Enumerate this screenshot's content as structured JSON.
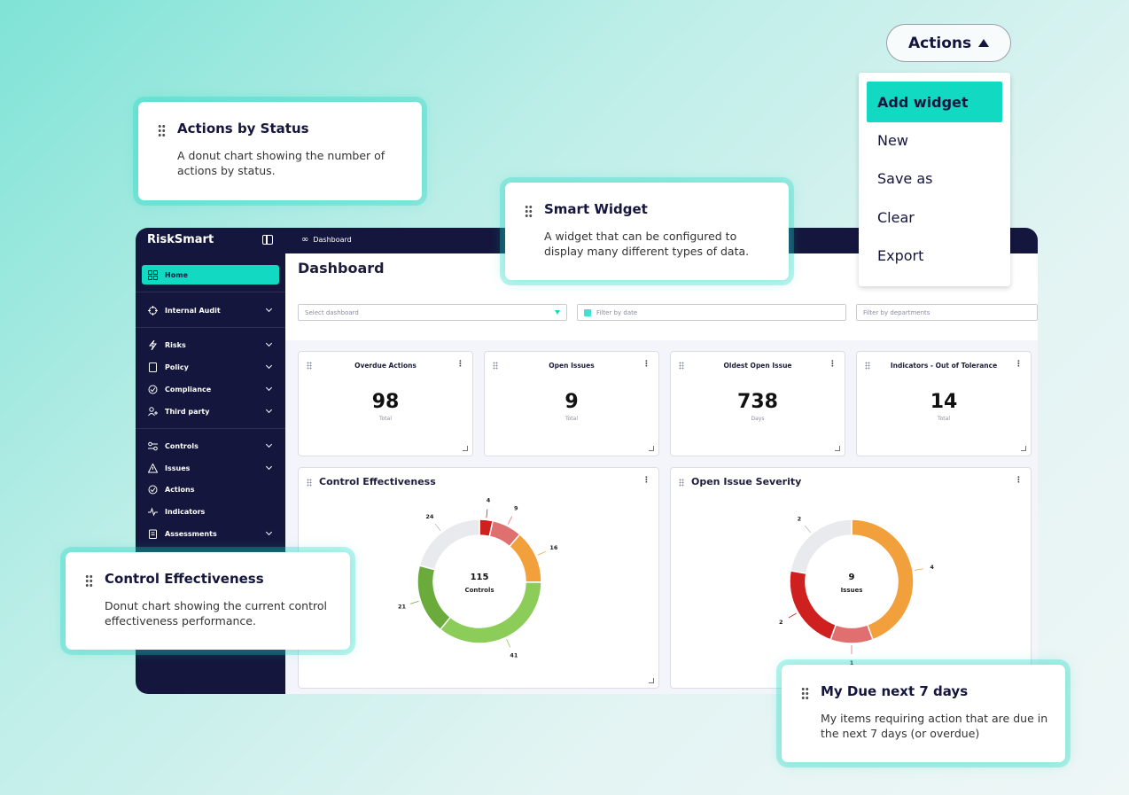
{
  "sidebar": {
    "brand": "RiskSmart",
    "items": [
      {
        "label": "Home"
      },
      {
        "label": "Internal Audit"
      },
      {
        "label": "Risks"
      },
      {
        "label": "Policy"
      },
      {
        "label": "Compliance"
      },
      {
        "label": "Third party"
      },
      {
        "label": "Controls"
      },
      {
        "label": "Issues"
      },
      {
        "label": "Actions"
      },
      {
        "label": "Indicators"
      },
      {
        "label": "Assessments"
      }
    ]
  },
  "topbar": {
    "breadcrumb": "Dashboard"
  },
  "main": {
    "title": "Dashboard",
    "filters": {
      "dashboard": "Select dashboard",
      "date": "Filter by date",
      "departments": "Filter by departments"
    },
    "kpis": [
      {
        "title": "Overdue Actions",
        "value": "98",
        "sub": "Total"
      },
      {
        "title": "Open Issues",
        "value": "9",
        "sub": "Total"
      },
      {
        "title": "Oldest Open Issue",
        "value": "738",
        "sub": "Days"
      },
      {
        "title": "Indicators - Out of Tolerance",
        "value": "14",
        "sub": "Total"
      }
    ],
    "widgets": [
      {
        "title": "Control Effectiveness",
        "center_value": "115",
        "center_label": "Controls"
      },
      {
        "title": "Open Issue Severity",
        "center_value": "9",
        "center_label": "Issues"
      }
    ]
  },
  "chart_data": [
    {
      "type": "pie",
      "title": "Control Effectiveness",
      "center_value": 115,
      "center_label": "Controls",
      "slices": [
        {
          "value": 4,
          "color": "#cf2020"
        },
        {
          "value": 9,
          "color": "#e07070"
        },
        {
          "value": 16,
          "color": "#f2a03c"
        },
        {
          "value": 41,
          "color": "#8ccd5a"
        },
        {
          "value": 21,
          "color": "#6aab3c"
        },
        {
          "value": 24,
          "color": "#e9eaee"
        }
      ]
    },
    {
      "type": "pie",
      "title": "Open Issue Severity",
      "center_value": 9,
      "center_label": "Issues",
      "slices": [
        {
          "value": 4,
          "color": "#f2a03c"
        },
        {
          "value": 1,
          "color": "#e07070"
        },
        {
          "value": 2,
          "color": "#cf2020"
        },
        {
          "value": 2,
          "color": "#e9eaee"
        }
      ]
    }
  ],
  "callouts": [
    {
      "title": "Actions by Status",
      "desc": "A donut chart showing the number of actions by status."
    },
    {
      "title": "Smart Widget",
      "desc": "A widget that can be configured to display many different types of data."
    },
    {
      "title": "Control Effectiveness",
      "desc": "Donut chart showing the current control effectiveness performance."
    },
    {
      "title": "My Due next 7 days",
      "desc": "My items requiring action that are due in the next 7 days (or overdue)"
    }
  ],
  "actions_menu": {
    "button_label": "Actions",
    "items": [
      "Add widget",
      "New",
      "Save as",
      "Clear",
      "Export"
    ]
  },
  "colors": {
    "accent": "#12d9c2",
    "navy": "#14163d"
  }
}
